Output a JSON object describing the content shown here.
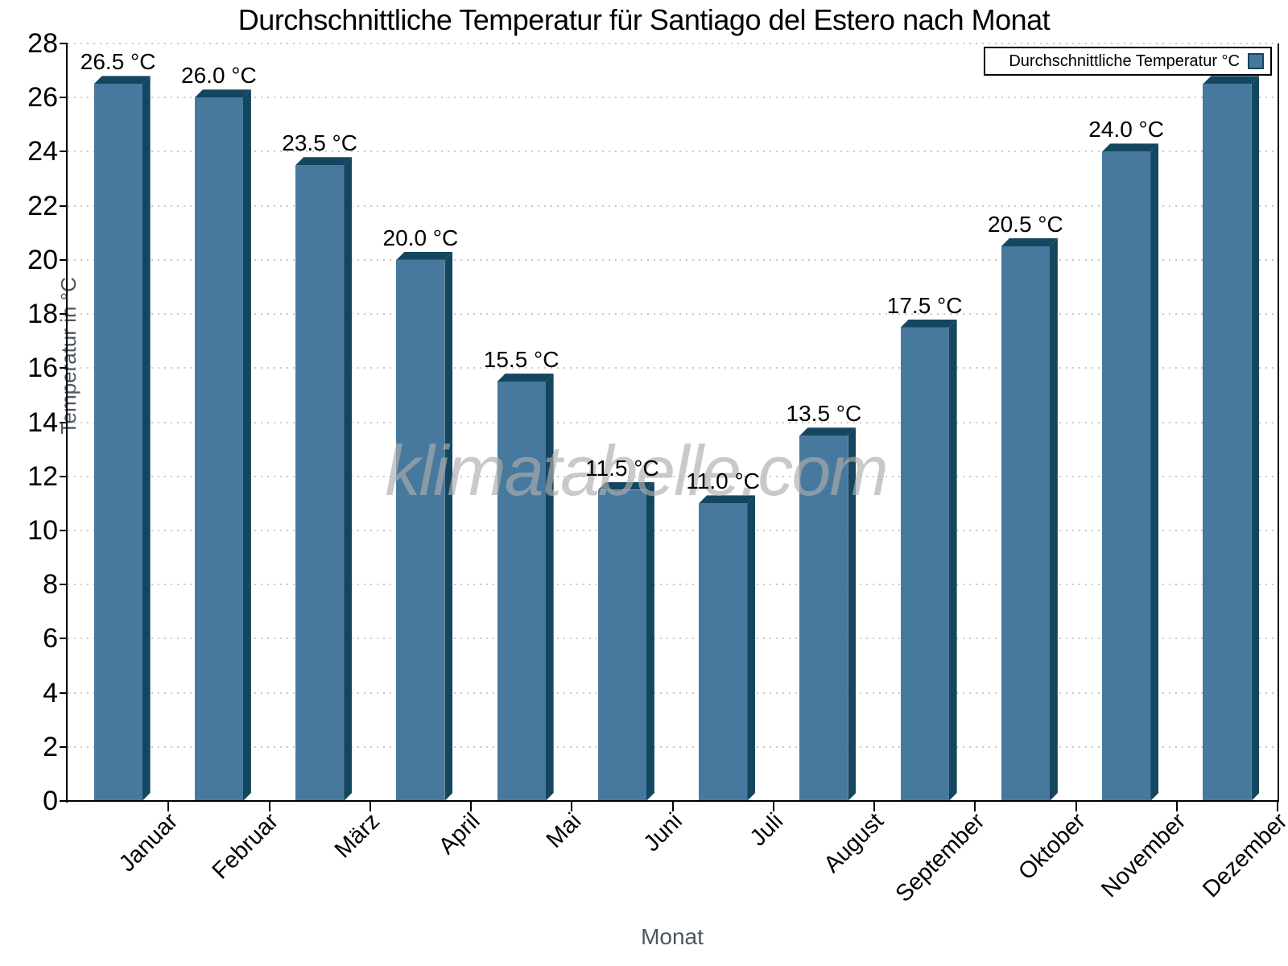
{
  "title": "Durchschnittliche Temperatur für Santiago del Estero nach Monat",
  "watermark": "klimatabelle.com",
  "legend": {
    "label": "Durchschnittliche Temperatur °C"
  },
  "axes": {
    "y_title": "Temperatur in °C",
    "x_title": "Monat",
    "y_ticks": [
      0,
      2,
      4,
      6,
      8,
      10,
      12,
      14,
      16,
      18,
      20,
      22,
      24,
      26,
      28
    ]
  },
  "chart_data": {
    "type": "bar",
    "title": "Durchschnittliche Temperatur für Santiago del Estero nach Monat",
    "categories": [
      "Januar",
      "Februar",
      "März",
      "April",
      "Mai",
      "Juni",
      "Juli",
      "August",
      "September",
      "Oktober",
      "November",
      "Dezember"
    ],
    "series": [
      {
        "name": "Durchschnittliche Temperatur °C",
        "values": [
          26.5,
          26.0,
          23.5,
          20.0,
          15.5,
          11.5,
          11.0,
          13.5,
          17.5,
          20.5,
          24.0,
          26.5
        ]
      }
    ],
    "value_labels": [
      "26.5 °C",
      "26.0 °C",
      "23.5 °C",
      "20.0 °C",
      "15.5 °C",
      "11.5 °C",
      "11.0 °C",
      "13.5 °C",
      "17.5 °C",
      "20.5 °C",
      "24.0 °C",
      "26.5 °C"
    ],
    "xlabel": "Monat",
    "ylabel": "Temperatur in °C",
    "ylim": [
      0,
      28
    ],
    "grid": "horizontal-dotted",
    "legend_position": "top-right",
    "bar_style": "3d-column"
  },
  "colors": {
    "bar_face": "#46799D",
    "bar_edge": "#15465F",
    "axis_title": "#4A5763",
    "grid": "#C9C9C9",
    "axis": "#000000"
  }
}
